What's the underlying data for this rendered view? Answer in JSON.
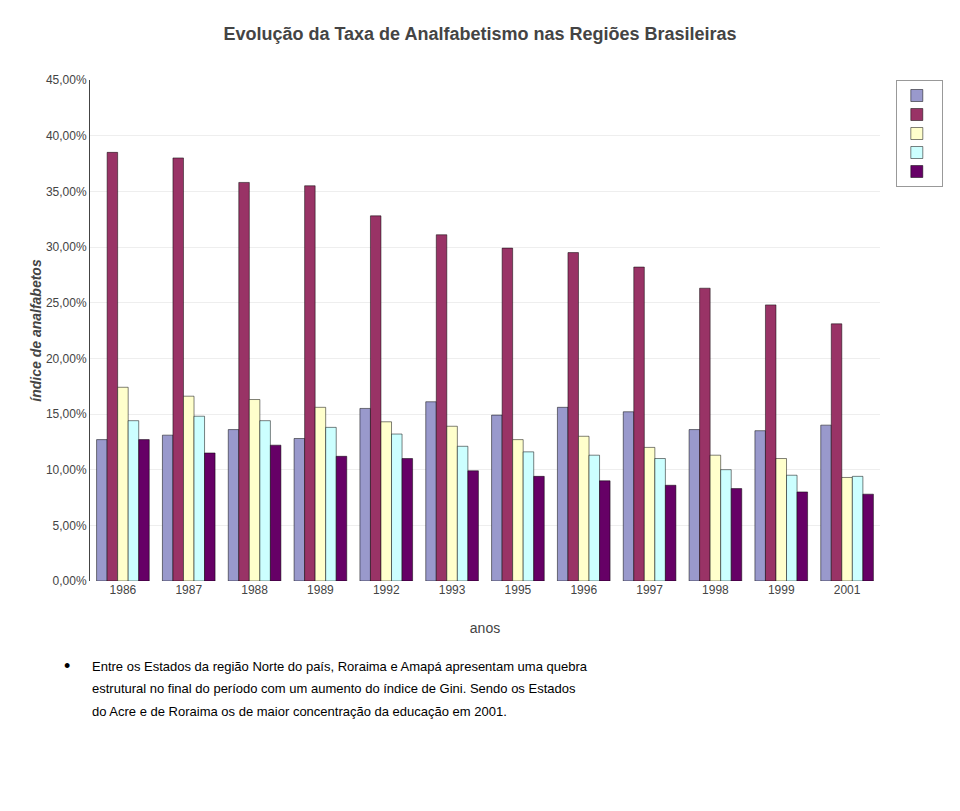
{
  "chart_data": {
    "type": "bar",
    "title": "Evolução da Taxa de Analfabetismo nas Regiões Brasileiras",
    "xlabel": "anos",
    "ylabel": "índice de analfabetos",
    "categories": [
      "1986",
      "1987",
      "1988",
      "1989",
      "1992",
      "1993",
      "1995",
      "1996",
      "1997",
      "1998",
      "1999",
      "2001"
    ],
    "series": [
      {
        "color": "#9999cc",
        "values": [
          0.127,
          0.131,
          0.136,
          0.128,
          0.155,
          0.161,
          0.149,
          0.156,
          0.152,
          0.136,
          0.135,
          0.14
        ]
      },
      {
        "color": "#993366",
        "values": [
          0.385,
          0.38,
          0.358,
          0.355,
          0.328,
          0.311,
          0.299,
          0.295,
          0.282,
          0.263,
          0.248,
          0.231
        ]
      },
      {
        "color": "#ffffcc",
        "values": [
          0.174,
          0.166,
          0.163,
          0.156,
          0.143,
          0.139,
          0.127,
          0.13,
          0.12,
          0.113,
          0.11,
          0.093
        ]
      },
      {
        "color": "#ccffff",
        "values": [
          0.144,
          0.148,
          0.144,
          0.138,
          0.132,
          0.121,
          0.116,
          0.113,
          0.11,
          0.1,
          0.095,
          0.094
        ]
      },
      {
        "color": "#660066",
        "values": [
          0.127,
          0.115,
          0.122,
          0.112,
          0.11,
          0.099,
          0.094,
          0.09,
          0.086,
          0.083,
          0.08,
          0.078
        ]
      }
    ],
    "ylim": [
      0.0,
      0.45
    ],
    "yticks": [
      {
        "value": 0.0,
        "label": "0,00%"
      },
      {
        "value": 0.05,
        "label": "5,00%"
      },
      {
        "value": 0.1,
        "label": "10,00%"
      },
      {
        "value": 0.15,
        "label": "15,00%"
      },
      {
        "value": 0.2,
        "label": "20,00%"
      },
      {
        "value": 0.25,
        "label": "25,00%"
      },
      {
        "value": 0.3,
        "label": "30,00%"
      },
      {
        "value": 0.35,
        "label": "35,00%"
      },
      {
        "value": 0.4,
        "label": "40,00%"
      },
      {
        "value": 0.45,
        "label": "45,00%"
      }
    ],
    "grid": true,
    "legend": "right",
    "bullet": "•",
    "annotations": [
      "Entre os Estados da região Norte do país, Roraima e Amapá apresentam uma quebra",
      "estrutural no final do período com um aumento do índice de Gini. Sendo os Estados",
      "do Acre e de Roraima os de maior concentração da educação em 2001."
    ]
  }
}
